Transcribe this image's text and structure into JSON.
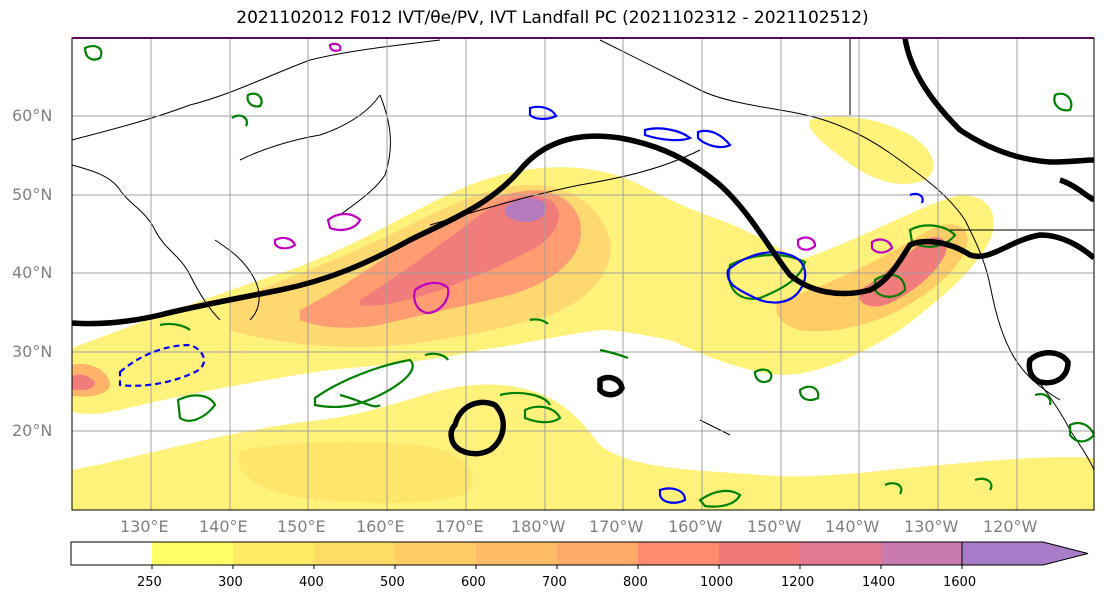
{
  "title": "2021102012 F012 IVT/θe/PV, IVT Landfall PC (2021102312 - 2021102512)",
  "lat_labels": [
    "60°N",
    "50°N",
    "40°N",
    "30°N",
    "20°N"
  ],
  "lon_labels": [
    "130°E",
    "140°E",
    "150°E",
    "160°E",
    "170°E",
    "180°W",
    "170°W",
    "160°W",
    "150°W",
    "140°W",
    "130°W",
    "120°W"
  ],
  "colorbar": {
    "levels": [
      "250",
      "300",
      "400",
      "500",
      "600",
      "700",
      "800",
      "1000",
      "1200",
      "1400",
      "1600"
    ],
    "colors": [
      "#ffffff",
      "#ffff66",
      "#ffeb66",
      "#ffdc66",
      "#ffcc66",
      "#ffbb66",
      "#ffaa66",
      "#ff8a70",
      "#f07878",
      "#e07a90",
      "#c87ab0",
      "#a87cc8"
    ],
    "extend": "max"
  },
  "contour_colors": {
    "theta_e": "#000000",
    "pv_positive": "#008000",
    "pv_negative": "#0000ff",
    "magenta": "#c000c0"
  }
}
